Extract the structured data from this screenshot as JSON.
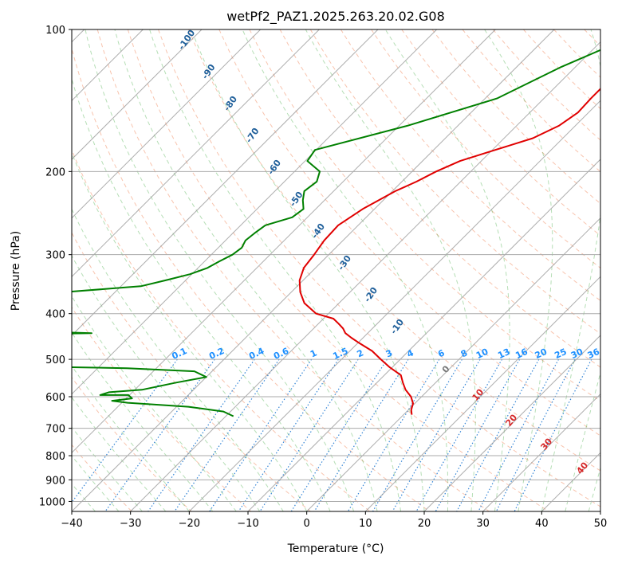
{
  "chart_data": {
    "type": "line",
    "title": "wetPf2_PAZ1.2025.263.20.02.G08",
    "xlabel": "Temperature (°C)",
    "ylabel": "Pressure (hPa)",
    "xlim": [
      -40,
      50
    ],
    "ylim": [
      1050,
      100
    ],
    "yscale": "log",
    "grid": true,
    "x_ticks": [
      "−40",
      "−30",
      "−20",
      "−10",
      "0",
      "10",
      "20",
      "30",
      "40",
      "50"
    ],
    "x_tick_values": [
      -40,
      -30,
      -20,
      -10,
      0,
      10,
      20,
      30,
      40,
      50
    ],
    "y_ticks": [
      "100",
      "200",
      "300",
      "400",
      "500",
      "600",
      "700",
      "800",
      "900",
      "1000"
    ],
    "y_tick_values": [
      100,
      200,
      300,
      400,
      500,
      600,
      700,
      800,
      900,
      1000
    ],
    "series": [
      {
        "role": "temperature",
        "color": "#e00000",
        "points": [
          [
            -12.7,
            100
          ],
          [
            -20.0,
            110
          ],
          [
            -21.5,
            120
          ],
          [
            -22.0,
            130
          ],
          [
            -22.0,
            140
          ],
          [
            -21.8,
            150
          ],
          [
            -22.8,
            160
          ],
          [
            -25.1,
            170
          ],
          [
            -29.5,
            180
          ],
          [
            -33.6,
            190
          ],
          [
            -35.9,
            200
          ],
          [
            -37.5,
            210
          ],
          [
            -39.5,
            220
          ],
          [
            -42.0,
            240
          ],
          [
            -43.4,
            260
          ],
          [
            -43.2,
            280
          ],
          [
            -42.5,
            300
          ],
          [
            -42.0,
            320
          ],
          [
            -40.6,
            340
          ],
          [
            -38.5,
            360
          ],
          [
            -35.9,
            380
          ],
          [
            -32.1,
            400
          ],
          [
            -28.3,
            410
          ],
          [
            -26.6,
            420
          ],
          [
            -25.0,
            430
          ],
          [
            -23.8,
            440
          ],
          [
            -22.0,
            450
          ],
          [
            -20.1,
            460
          ],
          [
            -16.2,
            480
          ],
          [
            -13.3,
            500
          ],
          [
            -10.4,
            520
          ],
          [
            -7.2,
            540
          ],
          [
            -5.6,
            560
          ],
          [
            -3.9,
            580
          ],
          [
            -1.8,
            600
          ],
          [
            -0.3,
            620
          ],
          [
            0.5,
            640
          ],
          [
            1.4,
            655
          ]
        ]
      },
      {
        "role": "dewpoint",
        "color": "#008000",
        "points": [
          [
            -24.0,
            100
          ],
          [
            -32.4,
            120
          ],
          [
            -38.0,
            140
          ],
          [
            -48.6,
            160
          ],
          [
            -60.2,
            180
          ],
          [
            -59.6,
            190
          ],
          [
            -55.7,
            200
          ],
          [
            -54.5,
            210
          ],
          [
            -55.0,
            220
          ],
          [
            -53.7,
            230
          ],
          [
            -52.1,
            240
          ],
          [
            -52.6,
            250
          ],
          [
            -55.8,
            260
          ],
          [
            -56.3,
            270
          ],
          [
            -56.6,
            280
          ],
          [
            -56.0,
            290
          ],
          [
            -56.4,
            300
          ],
          [
            -57.5,
            310
          ],
          [
            -58.4,
            320
          ],
          [
            -60.3,
            330
          ],
          [
            -63.4,
            340
          ],
          [
            -66.6,
            350
          ],
          [
            -89.8,
            370
          ],
          [
            -96.7,
            400
          ],
          [
            -100.1,
            420
          ],
          [
            -88.6,
            430
          ],
          [
            -75.0,
            437
          ],
          [
            -67.0,
            440
          ],
          [
            -90.0,
            445
          ],
          [
            -110.0,
            455
          ],
          [
            -125.0,
            462
          ],
          [
            -135.0,
            470
          ],
          [
            -140.0,
            480
          ],
          [
            -138.0,
            500
          ],
          [
            -125.0,
            512
          ],
          [
            -105.0,
            514
          ],
          [
            -78.0,
            516
          ],
          [
            -55.0,
            522
          ],
          [
            -43.0,
            530
          ],
          [
            -40.0,
            545
          ],
          [
            -44.2,
            560
          ],
          [
            -48.8,
            580
          ],
          [
            -54.0,
            587
          ],
          [
            -55.0,
            595
          ],
          [
            -50.2,
            595
          ],
          [
            -49.0,
            605
          ],
          [
            -52.0,
            612
          ],
          [
            -49.0,
            618
          ],
          [
            -38.0,
            630
          ],
          [
            -31.2,
            645
          ],
          [
            -28.7,
            660
          ]
        ]
      }
    ],
    "dry_adiabat_labels": [
      "-100",
      "-90",
      "-80",
      "-70",
      "-60",
      "-50",
      "-40",
      "-30",
      "-20",
      "-10"
    ],
    "dry_adiabat_label_values": [
      -100,
      -90,
      -80,
      -70,
      -60,
      -50,
      -40,
      -30,
      -20,
      -10
    ],
    "mixing_ratio_labels": [
      "0.1",
      "0.2",
      "0.4",
      "0.6",
      "1",
      "1.5",
      "2",
      "3",
      "4",
      "6",
      "8",
      "10",
      "13",
      "16",
      "20",
      "25",
      "30",
      "36"
    ],
    "mixing_ratio_values": [
      0.1,
      0.2,
      0.4,
      0.6,
      1,
      1.5,
      2,
      3,
      4,
      6,
      8,
      10,
      13,
      16,
      20,
      25,
      30,
      36
    ],
    "moist_adiabat_labels": [
      "0",
      "10",
      "20",
      "30",
      "40"
    ],
    "moist_adiabat_values": [
      0,
      10,
      20,
      30,
      40
    ],
    "colors": {
      "isotherm": "#999999",
      "isobar": "#aaaaaa",
      "dry_adiabat": "#f4a582",
      "moist_adiabat": "#2ca02c",
      "mixing_ratio": "#1e78d2",
      "temperature": "#e00000",
      "dewpoint": "#008000"
    }
  }
}
